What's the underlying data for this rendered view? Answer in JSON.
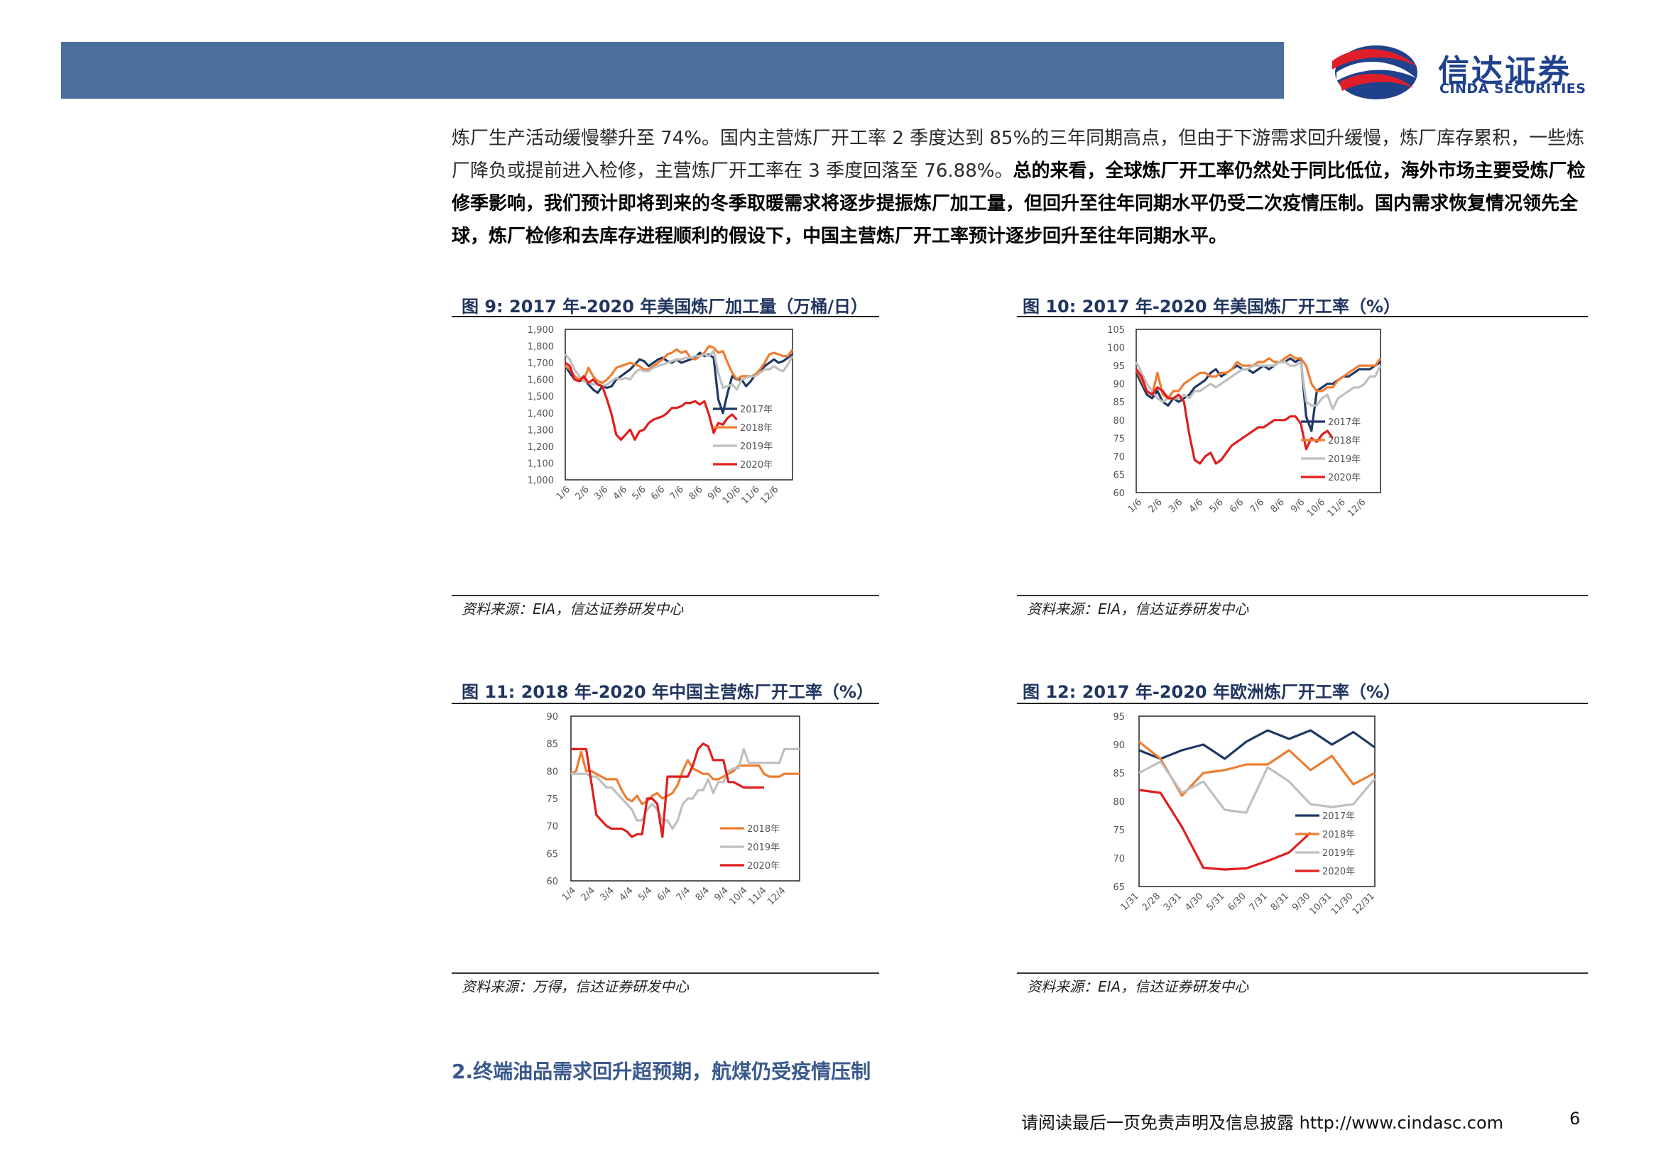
{
  "header": {
    "logo_cn": "信达证券",
    "logo_en": "CINDA SECURITIES"
  },
  "body": {
    "para_a": "炼厂生产活动缓慢攀升至 74%。国内主营炼厂开工率 2 季度达到 85%的三年同期高点，但由于下游需求回升缓慢，炼厂库存累积，一些炼厂降负或提前进入检修，主营炼厂开工率在 3 季度回落至 76.88%。",
    "para_b": "总的来看，全球炼厂开工率仍然处于同比低位，海外市场主要受炼厂检修季影响，我们预计即将到来的冬季取暖需求将逐步提振炼厂加工量，但回升至往年同期水平仍受二次疫情压制。国内需求恢复情况领先全球，炼厂检修和去库存进程顺利的假设下，中国主营炼厂开工率预计逐步回升至往年同期水平。"
  },
  "figures": {
    "fig9_title": "图 9:  2017 年-2020 年美国炼厂加工量（万桶/日）",
    "fig10_title": "图 10: 2017 年-2020 年美国炼厂开工率（%）",
    "fig11_title": "图 11: 2018 年-2020 年中国主营炼厂开工率（%）",
    "fig12_title": "图 12: 2017 年-2020 年欧洲炼厂开工率（%）",
    "source_eia": "资料来源：EIA，信达证券研发中心",
    "source_wind": "资料来源：万得，信达证券研发中心"
  },
  "section": {
    "heading": "2.终端油品需求回升超预期，航煤仍受疫情压制"
  },
  "footer": {
    "note": "请阅读最后一页免责声明及信息披露 http://www.cindasc.com",
    "page": "6"
  },
  "colors": {
    "s2017": "#1f3864",
    "s2018": "#ed7d31",
    "s2019": "#bfbfbf",
    "s2020": "#e01e1e",
    "header": "#4a6f9c",
    "brand": "#20418c"
  },
  "chart_data": [
    {
      "type": "line",
      "ylim": [
        1000,
        1900
      ],
      "yticks": [
        "1,000",
        "1,100",
        "1,200",
        "1,300",
        "1,400",
        "1,500",
        "1,600",
        "1,700",
        "1,800",
        "1,900"
      ],
      "xticks": [
        "1/6",
        "2/6",
        "3/6",
        "4/6",
        "5/6",
        "6/6",
        "7/6",
        "8/6",
        "9/6",
        "10/6",
        "11/6",
        "12/6"
      ],
      "x_range": [
        0,
        52
      ],
      "legend": "bottom-right inside",
      "series": [
        {
          "name": "2017年",
          "values": [
            1680,
            1640,
            1600,
            1590,
            1600,
            1570,
            1540,
            1520,
            1560,
            1550,
            1560,
            1600,
            1620,
            1640,
            1660,
            1690,
            1720,
            1710,
            1680,
            1700,
            1720,
            1730,
            1710,
            1700,
            1720,
            1700,
            1710,
            1720,
            1730,
            1760,
            1740,
            1750,
            1730,
            1480,
            1400,
            1520,
            1620,
            1600,
            1600,
            1560,
            1590,
            1630,
            1650,
            1680,
            1700,
            1720,
            1700,
            1710,
            1730,
            1750
          ]
        },
        {
          "name": "2018年",
          "values": [
            1680,
            1660,
            1620,
            1600,
            1600,
            1670,
            1620,
            1590,
            1580,
            1600,
            1630,
            1670,
            1680,
            1690,
            1700,
            1690,
            1680,
            1660,
            1660,
            1680,
            1700,
            1720,
            1750,
            1760,
            1780,
            1760,
            1770,
            1730,
            1720,
            1740,
            1760,
            1800,
            1790,
            1760,
            1770,
            1700,
            1640,
            1600,
            1620,
            1620,
            1620,
            1630,
            1660,
            1700,
            1750,
            1760,
            1750,
            1740,
            1740,
            1780
          ]
        },
        {
          "name": "2019年",
          "values": [
            1750,
            1720,
            1660,
            1620,
            1590,
            1580,
            1570,
            1580,
            1560,
            1570,
            1590,
            1610,
            1600,
            1610,
            1600,
            1640,
            1660,
            1650,
            1650,
            1670,
            1680,
            1690,
            1700,
            1710,
            1720,
            1720,
            1730,
            1730,
            1740,
            1740,
            1750,
            1740,
            1770,
            1640,
            1550,
            1560,
            1570,
            1540,
            1600,
            1610,
            1620,
            1620,
            1640,
            1660,
            1660,
            1680,
            1660,
            1650,
            1690,
            1740
          ]
        },
        {
          "name": "2020年",
          "values": [
            1700,
            1680,
            1600,
            1590,
            1620,
            1580,
            1600,
            1570,
            1560,
            1480,
            1390,
            1270,
            1240,
            1270,
            1300,
            1240,
            1290,
            1300,
            1340,
            1360,
            1370,
            1380,
            1400,
            1430,
            1430,
            1440,
            1460,
            1460,
            1470,
            1450,
            1470,
            1390,
            1280,
            1340,
            1330,
            1370,
            1390,
            1360
          ]
        }
      ]
    },
    {
      "type": "line",
      "ylim": [
        60,
        105
      ],
      "yticks": [
        "60",
        "65",
        "70",
        "75",
        "80",
        "85",
        "90",
        "95",
        "100",
        "105"
      ],
      "xticks": [
        "1/6",
        "2/6",
        "3/6",
        "4/6",
        "5/6",
        "6/6",
        "7/6",
        "8/6",
        "9/6",
        "10/6",
        "11/6",
        "12/6"
      ],
      "x_range": [
        0,
        52
      ],
      "legend": "bottom-right inside",
      "series": [
        {
          "name": "2017年",
          "values": [
            93,
            90,
            87,
            86,
            88,
            85,
            84,
            86,
            85,
            86,
            87,
            89,
            90,
            91,
            93,
            94,
            92,
            93,
            94,
            95,
            94,
            94,
            93,
            94,
            95,
            94,
            95,
            96,
            96,
            97,
            96,
            97,
            81,
            77,
            88,
            89,
            90,
            90,
            91,
            92,
            92,
            93,
            94,
            94,
            94,
            95,
            96
          ]
        },
        {
          "name": "2018年",
          "values": [
            94,
            91,
            88,
            87,
            93,
            87,
            86,
            88,
            88,
            90,
            91,
            92,
            93,
            93,
            92,
            92,
            93,
            93,
            94,
            96,
            95,
            95,
            95,
            96,
            96,
            97,
            96,
            96,
            97,
            98,
            97,
            97,
            95,
            90,
            88,
            88,
            89,
            89,
            91,
            92,
            93,
            94,
            95,
            95,
            95,
            95,
            97
          ]
        },
        {
          "name": "2019年",
          "values": [
            96,
            93,
            90,
            88,
            86,
            85,
            86,
            86,
            86,
            87,
            86,
            88,
            88,
            89,
            90,
            89,
            90,
            91,
            92,
            93,
            94,
            94,
            95,
            95,
            95,
            95,
            95,
            96,
            96,
            95,
            95,
            96,
            85,
            84,
            84,
            86,
            87,
            83,
            86,
            87,
            88,
            89,
            89,
            90,
            92,
            92,
            95
          ]
        },
        {
          "name": "2020年",
          "values": [
            94,
            92,
            88,
            87,
            89,
            88,
            86,
            86,
            87,
            85,
            76,
            69,
            68,
            70,
            71,
            68,
            69,
            71,
            73,
            74,
            75,
            76,
            77,
            78,
            78,
            79,
            80,
            80,
            80,
            81,
            81,
            79,
            72,
            75,
            74,
            76,
            77,
            75
          ]
        }
      ]
    },
    {
      "type": "line",
      "ylim": [
        60,
        90
      ],
      "yticks": [
        "60",
        "65",
        "70",
        "75",
        "80",
        "85",
        "90"
      ],
      "xticks": [
        "1/4",
        "2/4",
        "3/4",
        "4/4",
        "5/4",
        "6/4",
        "7/4",
        "8/4",
        "9/4",
        "10/4",
        "11/4",
        "12/4"
      ],
      "x_range": [
        0,
        48
      ],
      "legend": "bottom-right inside",
      "series": [
        {
          "name": "2018年",
          "values": [
            79.5,
            80,
            83.5,
            80,
            80,
            79.5,
            79,
            78.5,
            78.5,
            78.5,
            76.5,
            75,
            74.5,
            75.5,
            74,
            74.5,
            75.5,
            76,
            75,
            75.5,
            76,
            77.5,
            80,
            82,
            80.5,
            80,
            79.5,
            79.5,
            78.5,
            78.5,
            79,
            79.5,
            80,
            81,
            81,
            81,
            81,
            81,
            79.5,
            79,
            79,
            79,
            79.5,
            79.5,
            79.5,
            79.5
          ]
        },
        {
          "name": "2019年",
          "values": [
            79.5,
            79.5,
            79.5,
            79.5,
            79,
            79,
            78,
            77,
            77,
            76,
            75,
            74,
            73,
            71,
            71,
            73,
            74,
            73,
            71,
            71,
            69.5,
            71,
            74,
            75,
            75,
            76.5,
            76.5,
            78.5,
            76,
            78,
            78,
            80,
            80.5,
            80.5,
            84,
            81.5,
            81.5,
            81.5,
            81.5,
            81.5,
            81.5,
            81.5,
            84,
            84,
            84,
            84
          ]
        },
        {
          "name": "2020年",
          "values": [
            84,
            84,
            84,
            84,
            78,
            72,
            71,
            70,
            69.5,
            69.5,
            69.5,
            69,
            68,
            68.5,
            68.5,
            75,
            75,
            74,
            68,
            79,
            79,
            79,
            79,
            79,
            81,
            84,
            85,
            84.5,
            82,
            82,
            82,
            78,
            78,
            77.5,
            77,
            77,
            77,
            77,
            77
          ]
        }
      ]
    },
    {
      "type": "line",
      "ylim": [
        65,
        95
      ],
      "yticks": [
        "65",
        "70",
        "75",
        "80",
        "85",
        "90",
        "95"
      ],
      "xticks": [
        "1/31",
        "2/28",
        "3/31",
        "4/30",
        "5/31",
        "6/30",
        "7/31",
        "8/31",
        "9/30",
        "10/31",
        "11/30",
        "12/31"
      ],
      "legend": "bottom-right inside",
      "series": [
        {
          "name": "2017年",
          "values": [
            89,
            87.5,
            89,
            90,
            87.5,
            90.5,
            92.5,
            91,
            92.5,
            90,
            92.2,
            89.5
          ]
        },
        {
          "name": "2018年",
          "values": [
            90.5,
            87.5,
            81,
            85,
            85.5,
            86.5,
            86.5,
            89,
            85.5,
            88,
            83,
            85
          ]
        },
        {
          "name": "2019年",
          "values": [
            85,
            87,
            81.5,
            83.5,
            78.5,
            78,
            86,
            83.5,
            79.5,
            79,
            79.5,
            84
          ]
        },
        {
          "name": "2020年",
          "values": [
            82,
            81.5,
            75.5,
            68.3,
            68,
            68.2,
            69.5,
            71,
            74.5
          ]
        }
      ]
    }
  ]
}
